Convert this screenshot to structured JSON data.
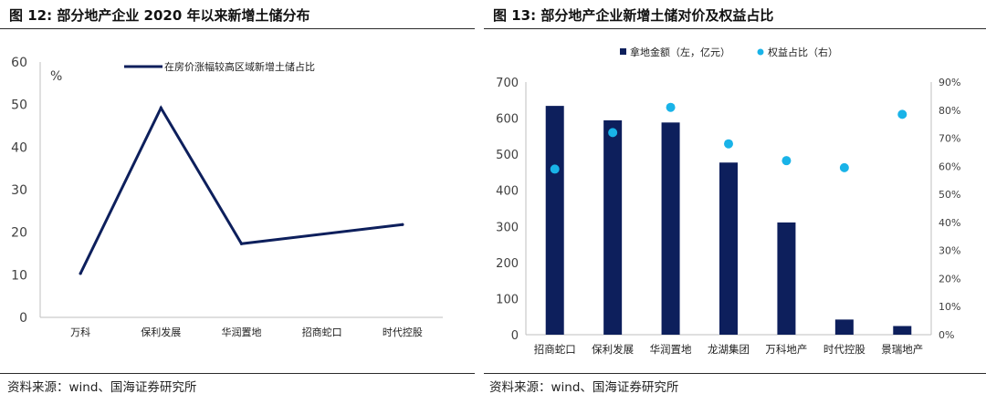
{
  "source_text": "资料来源：wind、国海证券研究所",
  "colors": {
    "navy": "#0d1f5c",
    "cyan": "#19b3e8",
    "axis": "#bfbfbf",
    "text": "#404040"
  },
  "chart_data": [
    {
      "id": "fig12",
      "type": "line",
      "title": "图 12:  部分地产企业 2020 年以来新增土储分布",
      "ylabel": "%",
      "ylim": [
        0,
        60
      ],
      "yticks": [
        0,
        10,
        20,
        30,
        40,
        50,
        60
      ],
      "categories": [
        "万科",
        "保利发展",
        "华润置地",
        "招商蛇口",
        "时代控股"
      ],
      "series": [
        {
          "name": "在房价涨幅较高区域新增土储占比",
          "values": [
            10.3,
            49.2,
            17.3,
            null,
            21.8
          ]
        }
      ],
      "grid": false,
      "legend": "top-right"
    },
    {
      "id": "fig13",
      "type": "bar",
      "title": "图 13:  部分地产企业新增土储对价及权益占比",
      "categories": [
        "招商蛇口",
        "保利发展",
        "华润置地",
        "龙湖集团",
        "万科地产",
        "时代控股",
        "景瑞地产"
      ],
      "series": [
        {
          "name": "拿地金额（左，亿元）",
          "type": "bar",
          "axis": "left",
          "values": [
            634,
            594,
            588,
            477,
            311,
            42,
            24
          ]
        },
        {
          "name": "权益占比（右）",
          "type": "scatter",
          "axis": "right",
          "values": [
            0.59,
            0.72,
            0.81,
            0.68,
            0.62,
            0.595,
            0.785
          ]
        }
      ],
      "ylim_left": [
        0,
        700
      ],
      "yticks_left": [
        0,
        100,
        200,
        300,
        400,
        500,
        600,
        700
      ],
      "ylim_right": [
        0,
        0.9
      ],
      "yticks_right": [
        "0%",
        "10%",
        "20%",
        "30%",
        "40%",
        "50%",
        "60%",
        "70%",
        "80%",
        "90%"
      ],
      "grid": false,
      "legend": "top"
    }
  ]
}
